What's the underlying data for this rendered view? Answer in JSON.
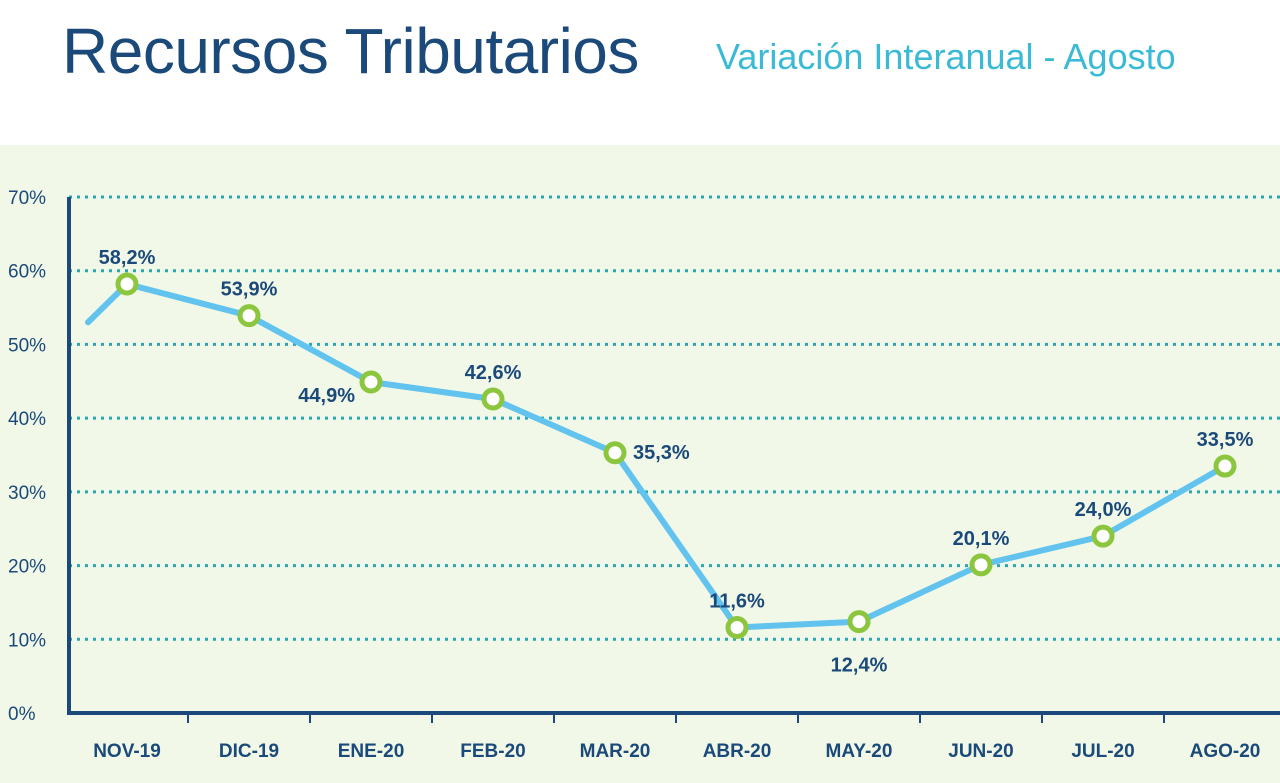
{
  "header": {
    "title": "Recursos Tributarios",
    "subtitle": "Variación Interanual - Agosto"
  },
  "colors": {
    "background": "#f1f8e7",
    "axis": "#1b4a7a",
    "gridline": "#2aa7b3",
    "line": "#62c3ee",
    "marker": "#8cc63f",
    "text": "#1b4a7a"
  },
  "chart_data": {
    "type": "line",
    "title": "Recursos Tributarios",
    "subtitle": "Variación Interanual - Agosto",
    "xlabel": "",
    "ylabel": "",
    "categories": [
      "NOV-19",
      "DIC-19",
      "ENE-20",
      "FEB-20",
      "MAR-20",
      "ABR-20",
      "MAY-20",
      "JUN-20",
      "JUL-20",
      "AGO-20"
    ],
    "series": [
      {
        "values": [
          58.2,
          53.9,
          44.9,
          42.6,
          35.3,
          11.6,
          12.4,
          20.1,
          24.0,
          33.5
        ],
        "labels": [
          "58,2%",
          "53,9%",
          "44,9%",
          "42,6%",
          "35,3%",
          "11,6%",
          "12,4%",
          "20,1%",
          "24,0%",
          "33,5%"
        ],
        "label_position": [
          "above",
          "above",
          "left",
          "above",
          "right",
          "above",
          "below",
          "above",
          "above",
          "above"
        ]
      }
    ],
    "lead_in_value": 53.0,
    "ylim": [
      0,
      70
    ],
    "yticks": [
      0,
      10,
      20,
      30,
      40,
      50,
      60,
      70
    ],
    "ytick_labels": [
      "0%",
      "10%",
      "20%",
      "30%",
      "40%",
      "50%",
      "60%",
      "70%"
    ],
    "grid": true,
    "legend": "none"
  }
}
